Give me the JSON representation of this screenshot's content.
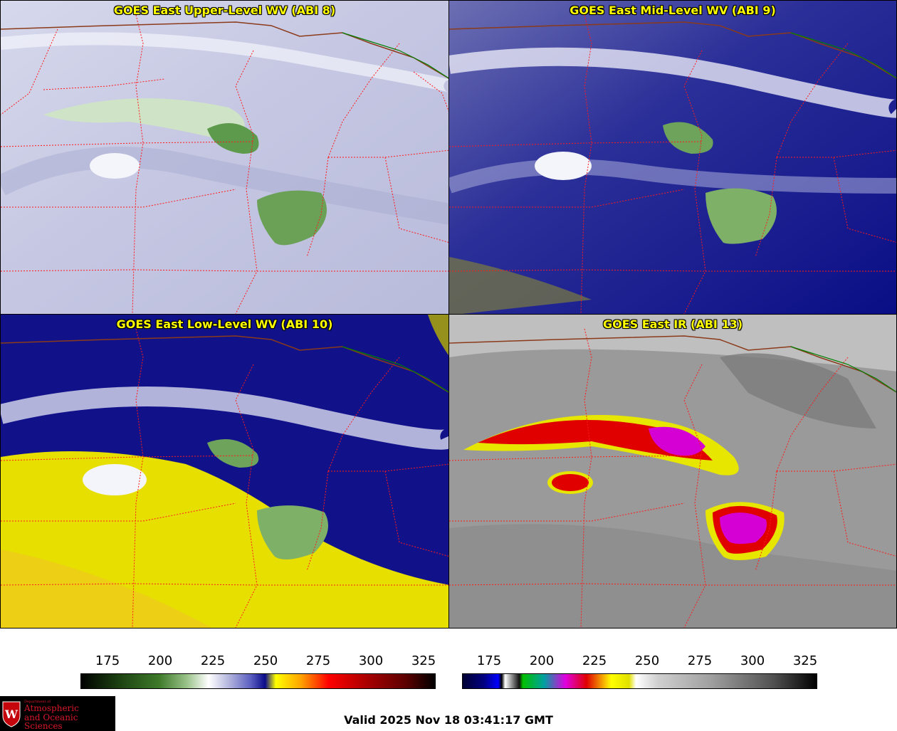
{
  "panels": [
    {
      "title": "GOES East Upper-Level WV (ABI 8)",
      "scheme": "upper"
    },
    {
      "title": "GOES East Mid-Level WV (ABI 9)",
      "scheme": "mid"
    },
    {
      "title": "GOES East Low-Level WV (ABI 10)",
      "scheme": "low"
    },
    {
      "title": "GOES East IR (ABI 13)",
      "scheme": "ir"
    }
  ],
  "colorbars": [
    {
      "ticks": [
        "175",
        "200",
        "225",
        "250",
        "275",
        "300",
        "325"
      ]
    },
    {
      "ticks": [
        "175",
        "200",
        "225",
        "250",
        "275",
        "300",
        "325"
      ]
    }
  ],
  "logo": {
    "dept": "Department of",
    "line1": "Atmospheric",
    "line2": "and Oceanic Sciences"
  },
  "valid_time": "Valid 2025 Nov 18 03:41:17 GMT",
  "colors": {
    "title_text": "#ffff00",
    "state_borders": "#ff0000",
    "country_border": "#8b3a1a",
    "lake_border": "#008000",
    "logo_text": "#d9172a"
  }
}
